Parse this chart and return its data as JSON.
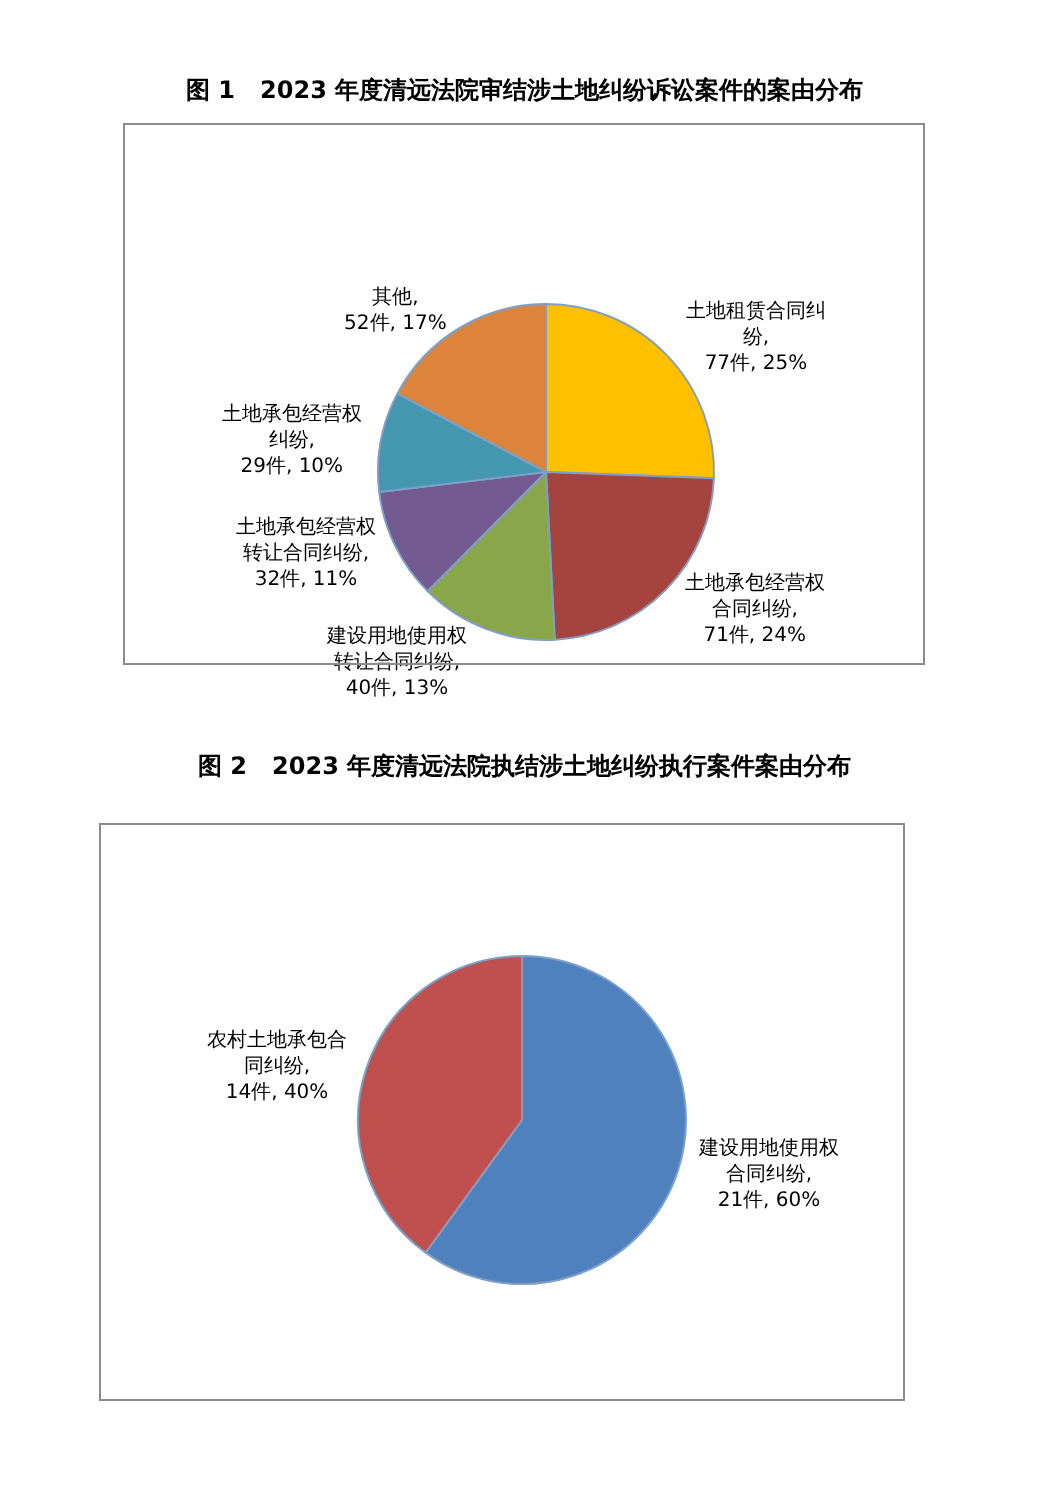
{
  "chart_data": [
    {
      "type": "pie",
      "title": "图 1   2023 年度清远法院审结涉土地纠纷诉讼案件的案由分布",
      "categories": [
        "土地租赁合同纠纷",
        "土地承包经营权合同纠纷",
        "建设用地使用权转让合同纠纷",
        "土地承包经营权转让合同纠纷",
        "土地承包经营权纠纷",
        "其他"
      ],
      "values": [
        77,
        71,
        40,
        32,
        29,
        52
      ],
      "colors": [
        "#ffc000",
        "#a5433f",
        "#8aa64b",
        "#735a91",
        "#4497ae",
        "#dc843c"
      ],
      "value_labels": [
        ", 77件, 25%",
        ", 71件, 24%",
        ", 40件, 13%",
        ", 32件, 11%",
        ", 29件, 10%",
        ", 52件, 17%"
      ]
    },
    {
      "type": "pie",
      "title": "图 2   2023 年度清远法院执结涉土地纠纷执行案件案由分布",
      "categories": [
        "建设用地使用权合同纠纷",
        "农村土地承包合同纠纷"
      ],
      "values": [
        21,
        14
      ],
      "colors": [
        "#4f81bd",
        "#c0504d"
      ],
      "value_labels": [
        ", 21件, 60%",
        ", 14件, 40%"
      ]
    }
  ]
}
